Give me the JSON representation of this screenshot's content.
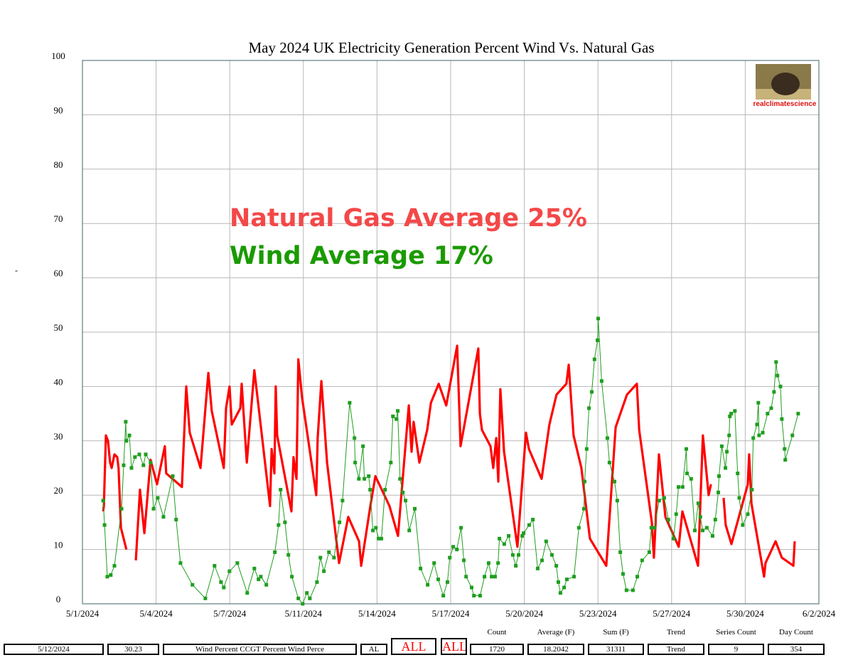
{
  "chart_data": {
    "type": "line",
    "title": "May 2024 UK Electricity Generation Percent Wind Vs. Natural Gas",
    "annotations": [
      {
        "text": "Natural Gas Average 25%",
        "color": "#f44848"
      },
      {
        "text": "Wind Average 17%",
        "color": "#1a9a00"
      }
    ],
    "logo_text": "realclimatescience",
    "side_mark": "-",
    "xlim": [
      1,
      33
    ],
    "xticks": [
      {
        "value": 1,
        "label": "5/1/2024"
      },
      {
        "value": 4.2,
        "label": "5/4/2024"
      },
      {
        "value": 7.4,
        "label": "5/7/2024"
      },
      {
        "value": 10.6,
        "label": "5/11/2024"
      },
      {
        "value": 13.8,
        "label": "5/14/2024"
      },
      {
        "value": 17,
        "label": "5/17/2024"
      },
      {
        "value": 20.2,
        "label": "5/20/2024"
      },
      {
        "value": 23.4,
        "label": "5/23/2024"
      },
      {
        "value": 26.6,
        "label": "5/27/2024"
      },
      {
        "value": 29.8,
        "label": "5/30/2024"
      },
      {
        "value": 33,
        "label": "6/2/2024"
      }
    ],
    "ylim": [
      0,
      100
    ],
    "yticks": [
      0,
      10,
      20,
      30,
      40,
      50,
      60,
      70,
      80,
      90,
      100
    ],
    "grid": true,
    "series": [
      {
        "color": "#ff0000",
        "line_width": 3.2,
        "marker": "none",
        "x": [
          1.9,
          1.93,
          2.02,
          2.11,
          2.2,
          2.27,
          2.39,
          2.51,
          2.57,
          2.67,
          2.91,
          3.1,
          3.32,
          3.5,
          3.69,
          3.96,
          4.24,
          4.58,
          4.64,
          5.32,
          5.51,
          5.66,
          6.13,
          6.47,
          6.62,
          7.14,
          7.24,
          7.39,
          7.49,
          7.86,
          7.92,
          8.14,
          8.47,
          9.15,
          9.22,
          9.34,
          9.4,
          9.46,
          10.08,
          10.17,
          10.3,
          10.38,
          10.54,
          11.16,
          11.22,
          11.38,
          11.63,
          12.15,
          12.55,
          13.02,
          13.11,
          13.51,
          13.73,
          14.34,
          14.71,
          15.18,
          15.3,
          15.39,
          15.64,
          15.98,
          16.14,
          16.48,
          16.81,
          17.28,
          17.43,
          18.2,
          18.27,
          18.36,
          18.73,
          18.85,
          18.98,
          19.07,
          19.16,
          19.32,
          19.9,
          20.27,
          20.4,
          20.95,
          21.29,
          21.6,
          22.03,
          22.13,
          22.34,
          22.68,
          23.05,
          23.76,
          24.17,
          24.66,
          25.09,
          25.19,
          25.74,
          25.83,
          26.05,
          26.33,
          26.91,
          27.07,
          27.75,
          27.96,
          28.21,
          28.31,
          28.5,
          28.86,
          28.95,
          29.2,
          29.91,
          29.97,
          30.07,
          30.62,
          30.68,
          31.12,
          31.39,
          31.89,
          31.95
        ],
        "values": [
          17,
          18,
          31,
          30,
          26,
          25,
          27.5,
          27,
          25,
          14,
          10,
          null,
          8,
          21,
          13,
          26.5,
          22,
          29,
          24,
          21.5,
          40,
          31.5,
          25,
          42.5,
          35.5,
          25,
          36,
          40,
          33,
          36,
          40.5,
          26,
          43,
          18,
          28.5,
          24,
          40,
          31,
          17,
          27,
          23,
          45,
          38,
          20,
          30.5,
          41,
          26,
          7.5,
          16,
          11.5,
          7,
          18,
          23.5,
          18,
          12.5,
          36.5,
          28,
          33.5,
          26,
          32,
          37,
          40.5,
          36.5,
          47.5,
          29,
          47,
          35,
          32,
          29,
          25,
          30.5,
          22.5,
          39.5,
          28,
          10.5,
          31.5,
          28.5,
          23,
          33,
          38.5,
          40.5,
          44,
          31,
          25,
          12,
          7,
          32.5,
          38.5,
          40.5,
          32,
          15,
          8.5,
          27.5,
          16,
          10.5,
          17,
          7,
          31,
          20,
          22,
          null,
          19.5,
          14.5,
          11,
          22,
          27.5,
          18.5,
          5,
          7.5,
          11.5,
          8.5,
          7,
          11.5
        ]
      },
      {
        "color": "#1f9e1f",
        "line_width": 1,
        "marker": "square",
        "x": [
          1.9,
          1.96,
          2.08,
          2.23,
          2.39,
          2.7,
          2.79,
          2.88,
          2.91,
          3.04,
          3.13,
          3.28,
          3.47,
          3.65,
          3.75,
          3.96,
          4.09,
          4.27,
          4.52,
          4.92,
          5.07,
          5.26,
          5.78,
          6.34,
          6.74,
          7.02,
          7.14,
          7.39,
          7.73,
          8.16,
          8.47,
          8.65,
          8.75,
          8.99,
          9.36,
          9.52,
          9.61,
          9.8,
          9.95,
          10.1,
          10.38,
          10.57,
          10.75,
          10.88,
          11.19,
          11.34,
          11.49,
          11.71,
          11.93,
          12.17,
          12.3,
          12.61,
          12.82,
          12.85,
          13.01,
          13.19,
          13.25,
          13.44,
          13.5,
          13.62,
          13.75,
          13.87,
          13.99,
          14.15,
          14.4,
          14.49,
          14.64,
          14.7,
          14.8,
          14.92,
          15.04,
          15.2,
          15.44,
          15.69,
          16.0,
          16.28,
          16.46,
          16.68,
          16.86,
          16.96,
          17.11,
          17.27,
          17.45,
          17.57,
          17.67,
          17.91,
          18.01,
          18.28,
          18.47,
          18.65,
          18.78,
          18.93,
          19.06,
          19.12,
          19.33,
          19.52,
          19.7,
          19.83,
          19.95,
          20.11,
          20.17,
          20.41,
          20.57,
          20.78,
          20.97,
          21.15,
          21.4,
          21.59,
          21.68,
          21.77,
          21.93,
          22.05,
          22.36,
          22.57,
          22.79,
          22.82,
          22.91,
          23.01,
          23.13,
          23.25,
          23.38,
          23.41,
          23.56,
          23.81,
          23.9,
          24.12,
          24.24,
          24.37,
          24.49,
          24.64,
          24.92,
          25.11,
          25.32,
          25.63,
          25.72,
          25.85,
          26.06,
          26.28,
          26.46,
          26.68,
          26.8,
          26.9,
          27.08,
          27.24,
          27.27,
          27.45,
          27.61,
          27.76,
          27.85,
          27.95,
          28.13,
          28.38,
          28.5,
          28.63,
          28.66,
          28.78,
          28.94,
          29.0,
          29.1,
          29.13,
          29.19,
          29.35,
          29.47,
          29.54,
          29.69,
          29.91,
          30.09,
          30.15,
          30.31,
          30.37,
          30.4,
          30.56,
          30.77,
          30.93,
          31.05,
          31.14,
          31.2,
          31.33,
          31.39,
          31.51,
          31.54,
          31.85,
          32.1
        ],
        "values": [
          19,
          14.5,
          5,
          5.3,
          7,
          17.5,
          25.5,
          33.5,
          30,
          31,
          25,
          27,
          27.5,
          25.5,
          27.5,
          26,
          17.5,
          19.5,
          16,
          23.5,
          15.5,
          7.5,
          3.5,
          1,
          7,
          4,
          3,
          6,
          7.5,
          2,
          6.5,
          4.5,
          5,
          3.5,
          9.5,
          14.5,
          21,
          15,
          9,
          5,
          1,
          0,
          2,
          1,
          4,
          8.5,
          6,
          9.5,
          8.5,
          15,
          19,
          37,
          30.5,
          26,
          23,
          29,
          23,
          23.5,
          21,
          13.5,
          14,
          12,
          12,
          21,
          26,
          34.5,
          34,
          35.5,
          23,
          20.5,
          19,
          13.5,
          17.5,
          6.5,
          3.5,
          7.5,
          4.5,
          1.5,
          4,
          8.5,
          10.5,
          10,
          14,
          8,
          5,
          3,
          1.5,
          1.5,
          5,
          7.5,
          5,
          5,
          7.5,
          12,
          11,
          12.5,
          9,
          7,
          9,
          12.5,
          13,
          14.5,
          15.5,
          6.5,
          8,
          11.5,
          9,
          7,
          4,
          2,
          3,
          4.5,
          5,
          14,
          17.5,
          22.5,
          28.5,
          36,
          39,
          45,
          48.5,
          52.5,
          41,
          30.5,
          26,
          22.5,
          19,
          9.5,
          5.5,
          2.5,
          2.5,
          5,
          8,
          9.5,
          14,
          14,
          19,
          19.5,
          15.5,
          12,
          16.5,
          21.5,
          21.5,
          28.5,
          24,
          23,
          13.5,
          18.5,
          16,
          13.5,
          14,
          12.5,
          15.5,
          20.5,
          23.5,
          29,
          25,
          28,
          31,
          34.5,
          35,
          35.5,
          24,
          19.5,
          14.5,
          16.5,
          21,
          30.5,
          33,
          37,
          31,
          31.5,
          35,
          36,
          39,
          44.5,
          42,
          40,
          34,
          28.5,
          26.5,
          31,
          35
        ]
      }
    ]
  },
  "footer": {
    "date": "5/12/2024",
    "value": "30.23",
    "series_text": "Wind Percent CCGT Percent Wind Perce",
    "state": "AL",
    "buttons": [
      "ALL",
      "ALL"
    ],
    "stats": [
      {
        "label": "Count",
        "value": 1720
      },
      {
        "label": "Average (F)",
        "value": 18.2042
      },
      {
        "label": "Sum (F)",
        "value": 31311
      },
      {
        "label": "Trend",
        "value": "Trend"
      },
      {
        "label": "Series Count",
        "value": 9
      },
      {
        "label": "Day Count",
        "value": 354
      }
    ]
  }
}
